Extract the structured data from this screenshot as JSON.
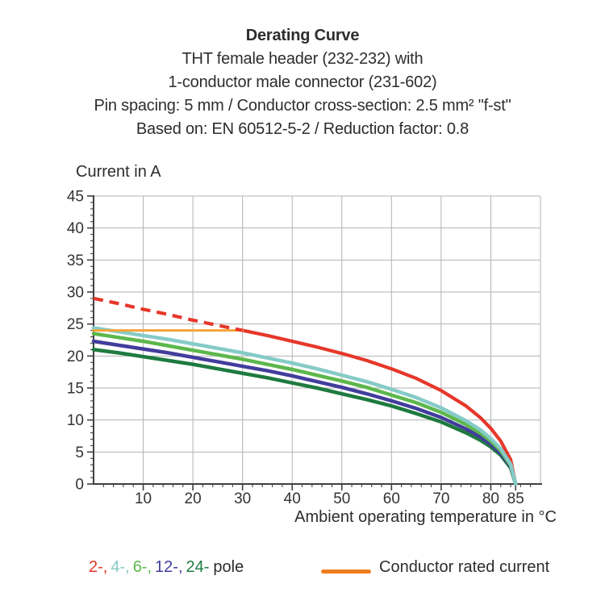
{
  "header": {
    "lines": [
      "Derating Curve",
      "THT female header (232-232) with",
      "1-conductor male connector (231-602)",
      "Pin spacing: 5 mm / Conductor cross-section: 2.5 mm² \"f-st\"",
      "Based on: EN 60512-5-2 / Reduction factor: 0.8"
    ]
  },
  "legend": {
    "poles": [
      {
        "label": "2-,",
        "color": "#e6372a"
      },
      {
        "label": "4-,",
        "color": "#85cbc7"
      },
      {
        "label": "6-,",
        "color": "#5db74c"
      },
      {
        "label": "12-,",
        "color": "#423d9c"
      },
      {
        "label": "24-",
        "color": "#1e7a3f"
      }
    ],
    "poles_suffix": "pole",
    "rated_label": "Conductor rated current",
    "rated_color": "#ee7d1e"
  },
  "chart_data": {
    "type": "line",
    "title": "Derating Curve",
    "xlabel": "Ambient operating temperature in °C",
    "ylabel": "Current in A",
    "xlim": [
      0,
      90
    ],
    "ylim": [
      0,
      45
    ],
    "xticks_major": [
      10,
      20,
      30,
      40,
      50,
      60,
      70,
      80,
      85
    ],
    "x_minor_step": 2,
    "x_minor_max": 88,
    "yticks": [
      0,
      5,
      10,
      15,
      20,
      25,
      30,
      35,
      40,
      45
    ],
    "y_minor_step": 1,
    "grid": {
      "x_step": 10,
      "y_step": 5,
      "color": "#b3b3b3"
    },
    "axis_color": "#404040",
    "label_color": "#333333",
    "series": [
      {
        "name": "2-pole",
        "color": "#e6372a",
        "width": 4.2,
        "dashed_until_x": 30,
        "points": [
          [
            0,
            29
          ],
          [
            5,
            28.2
          ],
          [
            10,
            27.3
          ],
          [
            15,
            26.5
          ],
          [
            20,
            25.6
          ],
          [
            25,
            24.8
          ],
          [
            30,
            24
          ],
          [
            35,
            23.2
          ],
          [
            40,
            22.3
          ],
          [
            45,
            21.4
          ],
          [
            50,
            20.4
          ],
          [
            55,
            19.3
          ],
          [
            60,
            18
          ],
          [
            65,
            16.5
          ],
          [
            70,
            14.6
          ],
          [
            75,
            12.2
          ],
          [
            78,
            10.3
          ],
          [
            80,
            8.7
          ],
          [
            82,
            6.7
          ],
          [
            84,
            3.8
          ],
          [
            85,
            0
          ]
        ]
      },
      {
        "name": "24-pole",
        "color": "#1e7a3f",
        "width": 4.5,
        "points": [
          [
            0,
            21
          ],
          [
            5,
            20.5
          ],
          [
            10,
            19.9
          ],
          [
            15,
            19.3
          ],
          [
            20,
            18.7
          ],
          [
            25,
            18
          ],
          [
            30,
            17.3
          ],
          [
            35,
            16.6
          ],
          [
            40,
            15.8
          ],
          [
            45,
            15
          ],
          [
            50,
            14.1
          ],
          [
            55,
            13.2
          ],
          [
            60,
            12.2
          ],
          [
            65,
            11
          ],
          [
            70,
            9.7
          ],
          [
            75,
            8
          ],
          [
            78,
            6.8
          ],
          [
            80,
            5.8
          ],
          [
            82,
            4.5
          ],
          [
            84,
            2.5
          ],
          [
            85,
            0
          ]
        ]
      },
      {
        "name": "12-pole",
        "color": "#423d9c",
        "width": 4.5,
        "points": [
          [
            0,
            22.3
          ],
          [
            5,
            21.7
          ],
          [
            10,
            21.1
          ],
          [
            15,
            20.5
          ],
          [
            20,
            19.8
          ],
          [
            25,
            19.1
          ],
          [
            30,
            18.4
          ],
          [
            35,
            17.7
          ],
          [
            40,
            16.9
          ],
          [
            45,
            16
          ],
          [
            50,
            15.1
          ],
          [
            55,
            14.1
          ],
          [
            60,
            13
          ],
          [
            65,
            11.8
          ],
          [
            70,
            10.4
          ],
          [
            75,
            8.6
          ],
          [
            78,
            7.3
          ],
          [
            80,
            6.2
          ],
          [
            82,
            4.8
          ],
          [
            84,
            2.7
          ],
          [
            85,
            0
          ]
        ]
      },
      {
        "name": "6-pole",
        "color": "#5db74c",
        "width": 4.5,
        "points": [
          [
            0,
            23.5
          ],
          [
            5,
            22.9
          ],
          [
            10,
            22.3
          ],
          [
            15,
            21.6
          ],
          [
            20,
            20.9
          ],
          [
            25,
            20.2
          ],
          [
            30,
            19.5
          ],
          [
            35,
            18.7
          ],
          [
            40,
            17.9
          ],
          [
            45,
            17
          ],
          [
            50,
            16.1
          ],
          [
            55,
            15.1
          ],
          [
            60,
            13.9
          ],
          [
            65,
            12.7
          ],
          [
            70,
            11.2
          ],
          [
            75,
            9.3
          ],
          [
            78,
            7.9
          ],
          [
            80,
            6.7
          ],
          [
            82,
            5.2
          ],
          [
            84,
            2.9
          ],
          [
            85,
            0
          ]
        ]
      },
      {
        "name": "4-pole",
        "color": "#85cbc7",
        "width": 4.5,
        "points": [
          [
            0,
            24.4
          ],
          [
            5,
            23.8
          ],
          [
            10,
            23.2
          ],
          [
            15,
            22.6
          ],
          [
            20,
            21.9
          ],
          [
            25,
            21.2
          ],
          [
            30,
            20.5
          ],
          [
            35,
            19.7
          ],
          [
            40,
            18.9
          ],
          [
            45,
            18
          ],
          [
            50,
            17
          ],
          [
            55,
            16
          ],
          [
            60,
            14.8
          ],
          [
            65,
            13.5
          ],
          [
            70,
            11.9
          ],
          [
            75,
            9.9
          ],
          [
            78,
            8.4
          ],
          [
            80,
            7.1
          ],
          [
            82,
            5.5
          ],
          [
            84,
            3.1
          ],
          [
            85,
            0
          ]
        ]
      },
      {
        "name": "Conductor rated current",
        "color": "#f4a339",
        "width": 3,
        "points": [
          [
            0,
            24
          ],
          [
            30,
            24
          ]
        ]
      }
    ]
  }
}
